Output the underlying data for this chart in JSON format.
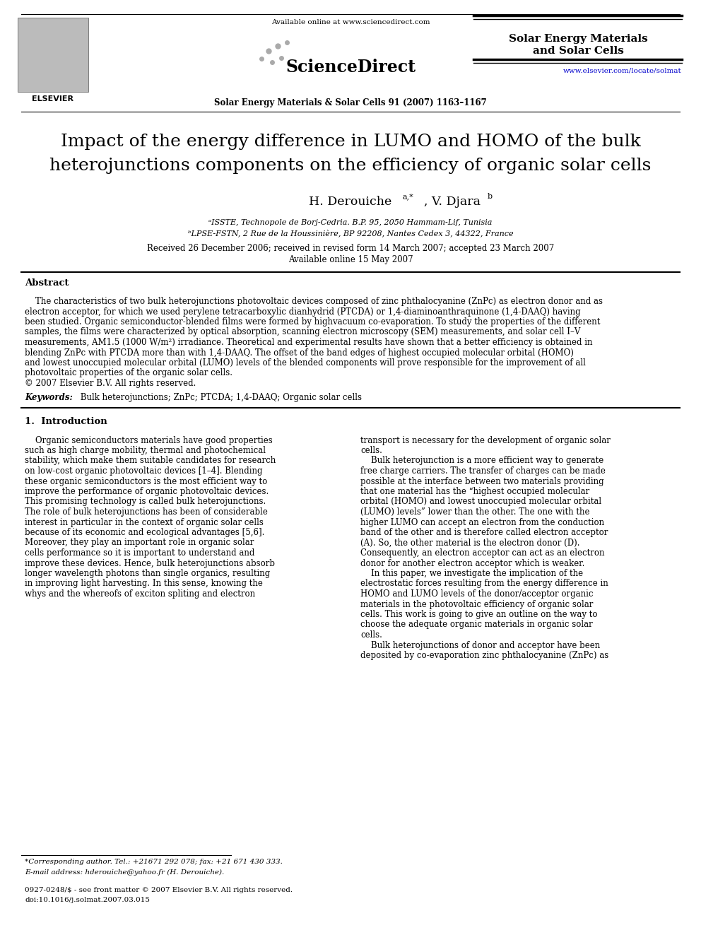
{
  "bg_color": "#ffffff",
  "available_online": "Available online at www.sciencedirect.com",
  "sciencedirect": "ScienceDirect",
  "journal_name_center": "Solar Energy Materials & Solar Cells 91 (2007) 1163–1167",
  "journal_name_right_line1": "Solar Energy Materials",
  "journal_name_right_line2": "and Solar Cells",
  "url": "www.elsevier.com/locate/solmat",
  "elsevier_text": "ELSEVIER",
  "title_line1": "Impact of the energy difference in LUMO and HOMO of the bulk",
  "title_line2": "heterojunctions components on the efficiency of organic solar cells",
  "authors": "H. Derouiche",
  "authors_super": "a,*",
  "authors2": ", V. Djara",
  "authors2_super": "b",
  "affil1_super": "a",
  "affil1": "ISSTE, Technopole de Borj-Cedria. B.P. 95, 2050 Hammam-Lif, Tunisia",
  "affil2_super": "b",
  "affil2": "LPSE-FSTN, 2 Rue de la Houssinère, BP 92208, Nantes Cedex 3, 44322, France",
  "received": "Received 26 December 2006; received in revised form 14 March 2007; accepted 23 March 2007",
  "available": "Available online 15 May 2007",
  "abstract_title": "Abstract",
  "abstract_text": "    The characteristics of two bulk heterojunctions photovoltaic devices composed of zinc phthalocyanine (ZnPc) as electron donor and as\nelectron acceptor, for which we used perylene tetracarboxylic dianhydrid (PTCDA) or 1,4-diaminoanthraquinone (1,4-DAAQ) having\nbeen studied. Organic semiconductor-blended films were formed by highvacuum co-evaporation. To study the properties of the different\nsamples, the films were characterized by optical absorption, scanning electron microscopy (SEM) measurements, and solar cell I–V\nmeasurements, AM1.5 (1000 W/m²) irradiance. Theoretical and experimental results have shown that a better efficiency is obtained in\nblending ZnPc with PTCDA more than with 1,4-DAAQ. The offset of the band edges of highest occupied molecular orbital (HOMO)\nand lowest unoccupied molecular orbital (LUMO) levels of the blended components will prove responsible for the improvement of all\nphotovoltaic properties of the organic solar cells.\n© 2007 Elsevier B.V. All rights reserved.",
  "keywords_label": "Keywords:",
  "keywords_text": " Bulk heterojunctions; ZnPc; PTCDA; 1,4-DAAQ; Organic solar cells",
  "section1_title": "1.  Introduction",
  "intro_left": "    Organic semiconductors materials have good properties\nsuch as high charge mobility, thermal and photochemical\nstability, which make them suitable candidates for research\non low-cost organic photovoltaic devices [1–4]. Blending\nthese organic semiconductors is the most efficient way to\nimprove the performance of organic photovoltaic devices.\nThis promising technology is called bulk heterojunctions.\nThe role of bulk heterojunctions has been of considerable\ninterest in particular in the context of organic solar cells\nbecause of its economic and ecological advantages [5,6].\nMoreover, they play an important role in organic solar\ncells performance so it is important to understand and\nimprove these devices. Hence, bulk heterojunctions absorb\nlonger wavelength photons than single organics, resulting\nin improving light harvesting. In this sense, knowing the\nwhys and the whereofs of exciton spliting and electron",
  "intro_right": "transport is necessary for the development of organic solar\ncells.\n    Bulk heterojunction is a more efficient way to generate\nfree charge carriers. The transfer of charges can be made\npossible at the interface between two materials providing\nthat one material has the “highest occupied molecular\norbital (HOMO) and lowest unoccupied molecular orbital\n(LUMO) levels” lower than the other. The one with the\nhigher LUMO can accept an electron from the conduction\nband of the other and is therefore called electron acceptor\n(A). So, the other material is the electron donor (D).\nConsequently, an electron acceptor can act as an electron\ndonor for another electron acceptor which is weaker.\n    In this paper, we investigate the implication of the\nelectrostatic forces resulting from the energy difference in\nHOMO and LUMO levels of the donor/acceptor organic\nmaterials in the photovoltaic efficiency of organic solar\ncells. This work is going to give an outline on the way to\nchoose the adequate organic materials in organic solar\ncells.\n    Bulk heterojunctions of donor and acceptor have been\ndeposited by co-evaporation zinc phthalocyanine (ZnPc) as",
  "footnote_line1": "*Corresponding author. Tel.: +21671 292 078; fax: +21 671 430 333.",
  "footnote_line2": "E-mail address: hderouiche@yahoo.fr (H. Derouiche).",
  "copyright_line1": "0927-0248/$ - see front matter © 2007 Elsevier B.V. All rights reserved.",
  "copyright_line2": "doi:10.1016/j.solmat.2007.03.015"
}
